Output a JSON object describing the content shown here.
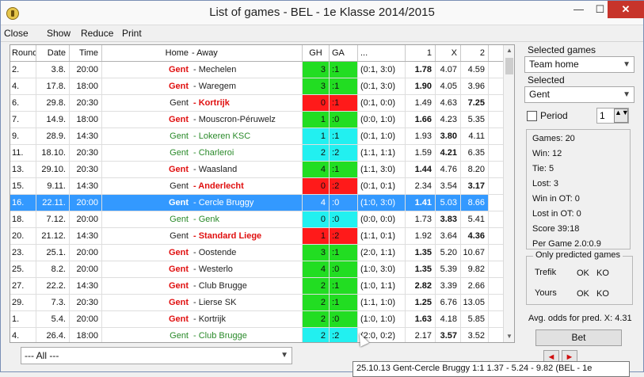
{
  "window": {
    "title": "List of games - BEL - 1e Klasse 2014/2015",
    "minimize": "—",
    "maximize": "☐",
    "close": "✕"
  },
  "menu": [
    "Close",
    "Show",
    "Reduce",
    "Print"
  ],
  "columns": {
    "round": "Round",
    "date": "Date",
    "time": "Time",
    "home": "Home",
    "away": "- Away",
    "gh": "GH",
    "ga": "GA",
    "ht": "...",
    "o1": "1",
    "ox": "X",
    "o2": "2"
  },
  "rows": [
    {
      "round": "2.",
      "date": "3.8.",
      "time": "20:00",
      "home": "Gent",
      "home_style": "home",
      "away": "- Mechelen",
      "away_style": "away-norm",
      "gh": "3",
      "ga": "1",
      "color": "#22dd22",
      "ht": "(0:1, 3:0)",
      "o1": "1.78",
      "ox": "4.07",
      "o2": "4.59",
      "bold": "1"
    },
    {
      "round": "4.",
      "date": "17.8.",
      "time": "18:00",
      "home": "Gent",
      "home_style": "home",
      "away": "- Waregem",
      "away_style": "away-norm",
      "gh": "3",
      "ga": "1",
      "color": "#22dd22",
      "ht": "(0:1, 3:0)",
      "o1": "1.90",
      "ox": "4.05",
      "o2": "3.96",
      "bold": "1"
    },
    {
      "round": "6.",
      "date": "29.8.",
      "time": "20:30",
      "home": "Gent",
      "home_style": "home-norm",
      "away": "- Kortrijk",
      "away_style": "away-bold",
      "gh": "0",
      "ga": "1",
      "color": "#ff1a1a",
      "ht": "(0:1, 0:0)",
      "o1": "1.49",
      "ox": "4.63",
      "o2": "7.25",
      "bold": "2"
    },
    {
      "round": "7.",
      "date": "14.9.",
      "time": "18:00",
      "home": "Gent",
      "home_style": "home",
      "away": "- Mouscron-Péruwelz",
      "away_style": "away-norm",
      "gh": "1",
      "ga": "0",
      "color": "#22dd22",
      "ht": "(0:0, 1:0)",
      "o1": "1.66",
      "ox": "4.23",
      "o2": "5.35",
      "bold": "1"
    },
    {
      "round": "9.",
      "date": "28.9.",
      "time": "14:30",
      "home": "Gent",
      "home_style": "green",
      "away": "- Lokeren KSC",
      "away_style": "green",
      "gh": "1",
      "ga": "1",
      "color": "#22f0f0",
      "ht": "(0:1, 1:0)",
      "o1": "1.93",
      "ox": "3.80",
      "o2": "4.11",
      "bold": "x"
    },
    {
      "round": "11.",
      "date": "18.10.",
      "time": "20:30",
      "home": "Gent",
      "home_style": "green",
      "away": "- Charleroi",
      "away_style": "green",
      "gh": "2",
      "ga": "2",
      "color": "#22f0f0",
      "ht": "(1:1, 1:1)",
      "o1": "1.59",
      "ox": "4.21",
      "o2": "6.35",
      "bold": "x"
    },
    {
      "round": "13.",
      "date": "29.10.",
      "time": "20:30",
      "home": "Gent",
      "home_style": "home",
      "away": "- Waasland",
      "away_style": "away-norm",
      "gh": "4",
      "ga": "1",
      "color": "#22dd22",
      "ht": "(1:1, 3:0)",
      "o1": "1.44",
      "ox": "4.76",
      "o2": "8.20",
      "bold": "1"
    },
    {
      "round": "15.",
      "date": "9.11.",
      "time": "14:30",
      "home": "Gent",
      "home_style": "home-norm",
      "away": "- Anderlecht",
      "away_style": "away-bold",
      "gh": "0",
      "ga": "2",
      "color": "#ff1a1a",
      "ht": "(0:1, 0:1)",
      "o1": "2.34",
      "ox": "3.54",
      "o2": "3.17",
      "bold": "2"
    },
    {
      "round": "16.",
      "date": "22.11.",
      "time": "20:00",
      "home": "Gent",
      "home_style": "home",
      "away": "- Cercle Bruggy",
      "away_style": "away-norm",
      "gh": "4",
      "ga": "0",
      "color": "#3399ff",
      "ht": "(1:0, 3:0)",
      "o1": "1.41",
      "ox": "5.03",
      "o2": "8.66",
      "bold": "1",
      "selected": true
    },
    {
      "round": "18.",
      "date": "7.12.",
      "time": "20:00",
      "home": "Gent",
      "home_style": "green",
      "away": "- Genk",
      "away_style": "green",
      "gh": "0",
      "ga": "0",
      "color": "#22f0f0",
      "ht": "(0:0, 0:0)",
      "o1": "1.73",
      "ox": "3.83",
      "o2": "5.41",
      "bold": "x"
    },
    {
      "round": "20.",
      "date": "21.12.",
      "time": "14:30",
      "home": "Gent",
      "home_style": "home-norm",
      "away": "- Standard Liege",
      "away_style": "away-bold",
      "gh": "1",
      "ga": "2",
      "color": "#ff1a1a",
      "ht": "(1:1, 0:1)",
      "o1": "1.92",
      "ox": "3.64",
      "o2": "4.36",
      "bold": "2"
    },
    {
      "round": "23.",
      "date": "25.1.",
      "time": "20:00",
      "home": "Gent",
      "home_style": "home",
      "away": "- Oostende",
      "away_style": "away-norm",
      "gh": "3",
      "ga": "1",
      "color": "#22dd22",
      "ht": "(2:0, 1:1)",
      "o1": "1.35",
      "ox": "5.20",
      "o2": "10.67",
      "bold": "1"
    },
    {
      "round": "25.",
      "date": "8.2.",
      "time": "20:00",
      "home": "Gent",
      "home_style": "home",
      "away": "- Westerlo",
      "away_style": "away-norm",
      "gh": "4",
      "ga": "0",
      "color": "#22dd22",
      "ht": "(1:0, 3:0)",
      "o1": "1.35",
      "ox": "5.39",
      "o2": "9.82",
      "bold": "1"
    },
    {
      "round": "27.",
      "date": "22.2.",
      "time": "14:30",
      "home": "Gent",
      "home_style": "home",
      "away": "- Club Brugge",
      "away_style": "away-norm",
      "gh": "2",
      "ga": "1",
      "color": "#22dd22",
      "ht": "(1:0, 1:1)",
      "o1": "2.82",
      "ox": "3.39",
      "o2": "2.66",
      "bold": "1"
    },
    {
      "round": "29.",
      "date": "7.3.",
      "time": "20:30",
      "home": "Gent",
      "home_style": "home",
      "away": "- Lierse SK",
      "away_style": "away-norm",
      "gh": "2",
      "ga": "1",
      "color": "#22dd22",
      "ht": "(1:1, 1:0)",
      "o1": "1.25",
      "ox": "6.76",
      "o2": "13.05",
      "bold": "1"
    },
    {
      "round": "1.",
      "date": "5.4.",
      "time": "20:00",
      "home": "Gent",
      "home_style": "home",
      "away": "- Kortrijk",
      "away_style": "away-norm",
      "gh": "2",
      "ga": "0",
      "color": "#22dd22",
      "ht": "(1:0, 1:0)",
      "o1": "1.63",
      "ox": "4.18",
      "o2": "5.85",
      "bold": "1"
    },
    {
      "round": "4.",
      "date": "26.4.",
      "time": "18:00",
      "home": "Gent",
      "home_style": "green",
      "away": "- Club Brugge",
      "away_style": "green",
      "gh": "2",
      "ga": "2",
      "color": "#22f0f0",
      "ht": "(2:0, 0:2)",
      "o1": "2.17",
      "ox": "3.57",
      "o2": "3.52",
      "bold": "x"
    }
  ],
  "filter": {
    "value": "--- All ---",
    "arrow": "▼"
  },
  "panel": {
    "selected_games_label": "Selected games",
    "selected_games_value": "Team home",
    "selected_label": "Selected",
    "selected_value": "Gent",
    "period_label": "Period",
    "period_value": "1",
    "combo_arrow": "▼",
    "spin_icon": "▲▼"
  },
  "stats": {
    "games": "Games: 20",
    "win": "Win: 12",
    "tie": "Tie: 5",
    "lost": "Lost: 3",
    "win_ot": "Win in OT: 0",
    "lost_ot": "Lost in OT: 0",
    "score": "Score 39:18",
    "per_game": "Per Game 2.0:0.9"
  },
  "predicted": {
    "title": "Only predicted games",
    "trefik": "Trefik",
    "trefik_ok": "OK",
    "trefik_ko": "KO",
    "yours": "Yours",
    "yours_ok": "OK",
    "yours_ko": "KO"
  },
  "avg_odds": "Avg. odds for pred. X: 4.31",
  "bet_button": "Bet",
  "nav": {
    "prev": "◄",
    "next": "►"
  },
  "tooltip": "25.10.13 Gent-Cercle Bruggy 1:1   1.37 - 5.24 - 9.82 (BEL - 1e",
  "scroll": {
    "up": "▲",
    "down": "▼"
  }
}
